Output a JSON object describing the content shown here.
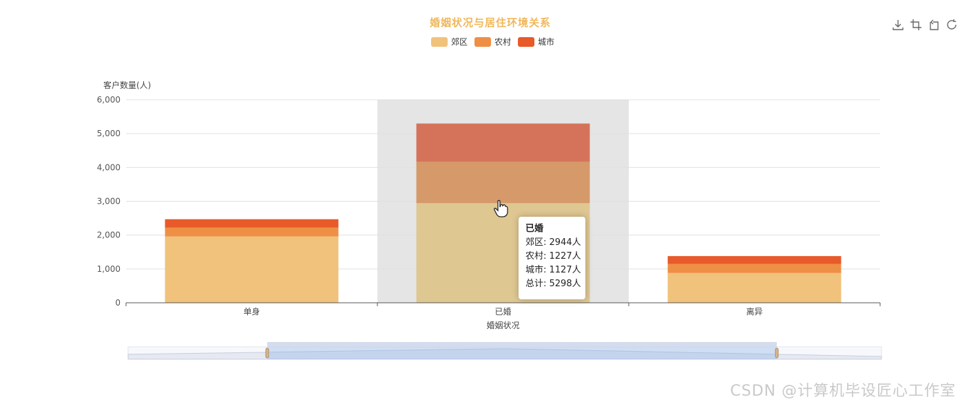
{
  "title": "婚姻状况与居住环境关系",
  "title_color": "#f0b75a",
  "legend": [
    {
      "name": "郊区",
      "color": "#f0c27b"
    },
    {
      "name": "农村",
      "color": "#ef8f45"
    },
    {
      "name": "城市",
      "color": "#e85a2a"
    }
  ],
  "toolbox": [
    "download-icon",
    "crop-icon",
    "undo-icon",
    "refresh-icon"
  ],
  "tooltip": {
    "title": "已婚",
    "lines": [
      "郊区: 2944人",
      "农村: 1227人",
      "城市: 1127人",
      "总计: 5298人"
    ]
  },
  "watermark": "CSDN @计算机毕设匠心工作室",
  "chart_data": {
    "type": "bar",
    "stacked": true,
    "categories": [
      "单身",
      "已婚",
      "离异"
    ],
    "series": [
      {
        "name": "郊区",
        "values": [
          1960,
          2944,
          880
        ]
      },
      {
        "name": "农村",
        "values": [
          260,
          1227,
          270
        ]
      },
      {
        "name": "城市",
        "values": [
          250,
          1127,
          230
        ]
      }
    ],
    "xlabel": "婚姻状况",
    "ylabel": "客户数量(人)",
    "ylim": [
      0,
      6000
    ],
    "yticks": [
      "0",
      "1,000",
      "2,000",
      "3,000",
      "4,000",
      "5,000",
      "6,000"
    ],
    "yticks_values": [
      0,
      1000,
      2000,
      3000,
      4000,
      5000,
      6000
    ],
    "grid": true,
    "highlighted_category": "已婚",
    "legend_position": "top-center"
  }
}
